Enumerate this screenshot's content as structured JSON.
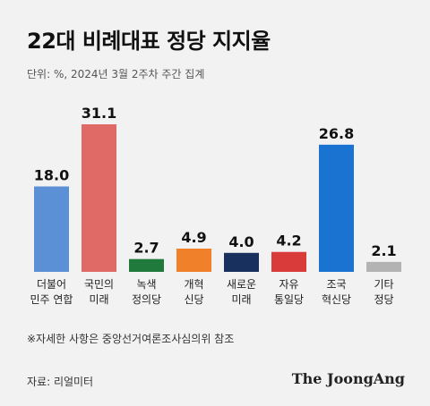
{
  "title": "22대 비례대표 정당 지지율",
  "subtitle": "단위: %, 2024년 3월 2주차 주간 집계",
  "footnote": "※자세한 사항은 중앙선거여론조사심의위 참조",
  "source": "자료: 리얼미터",
  "brand": "The JoongAng",
  "chart_data": {
    "type": "bar",
    "title": "22대 비례대표 정당 지지율",
    "unit": "%",
    "ylim": [
      0,
      31.1
    ],
    "grid": false,
    "categories": [
      [
        "더불어",
        "민주 연합"
      ],
      [
        "국민의",
        "미래"
      ],
      [
        "녹색",
        "정의당"
      ],
      [
        "개혁",
        "신당"
      ],
      [
        "새로운",
        "미래"
      ],
      [
        "자유",
        "통일당"
      ],
      [
        "조국",
        "혁신당"
      ],
      [
        "기타",
        "정당"
      ]
    ],
    "values": [
      18.0,
      31.1,
      2.7,
      4.9,
      4.0,
      4.2,
      26.8,
      2.1
    ],
    "value_labels": [
      "18.0",
      "31.1",
      "2.7",
      "4.9",
      "4.0",
      "4.2",
      "26.8",
      "2.1"
    ],
    "colors": [
      "#5b8fd6",
      "#e06a66",
      "#1f7a3c",
      "#f0812a",
      "#17305e",
      "#d93a3a",
      "#1a73d1",
      "#b3b3b3"
    ]
  }
}
